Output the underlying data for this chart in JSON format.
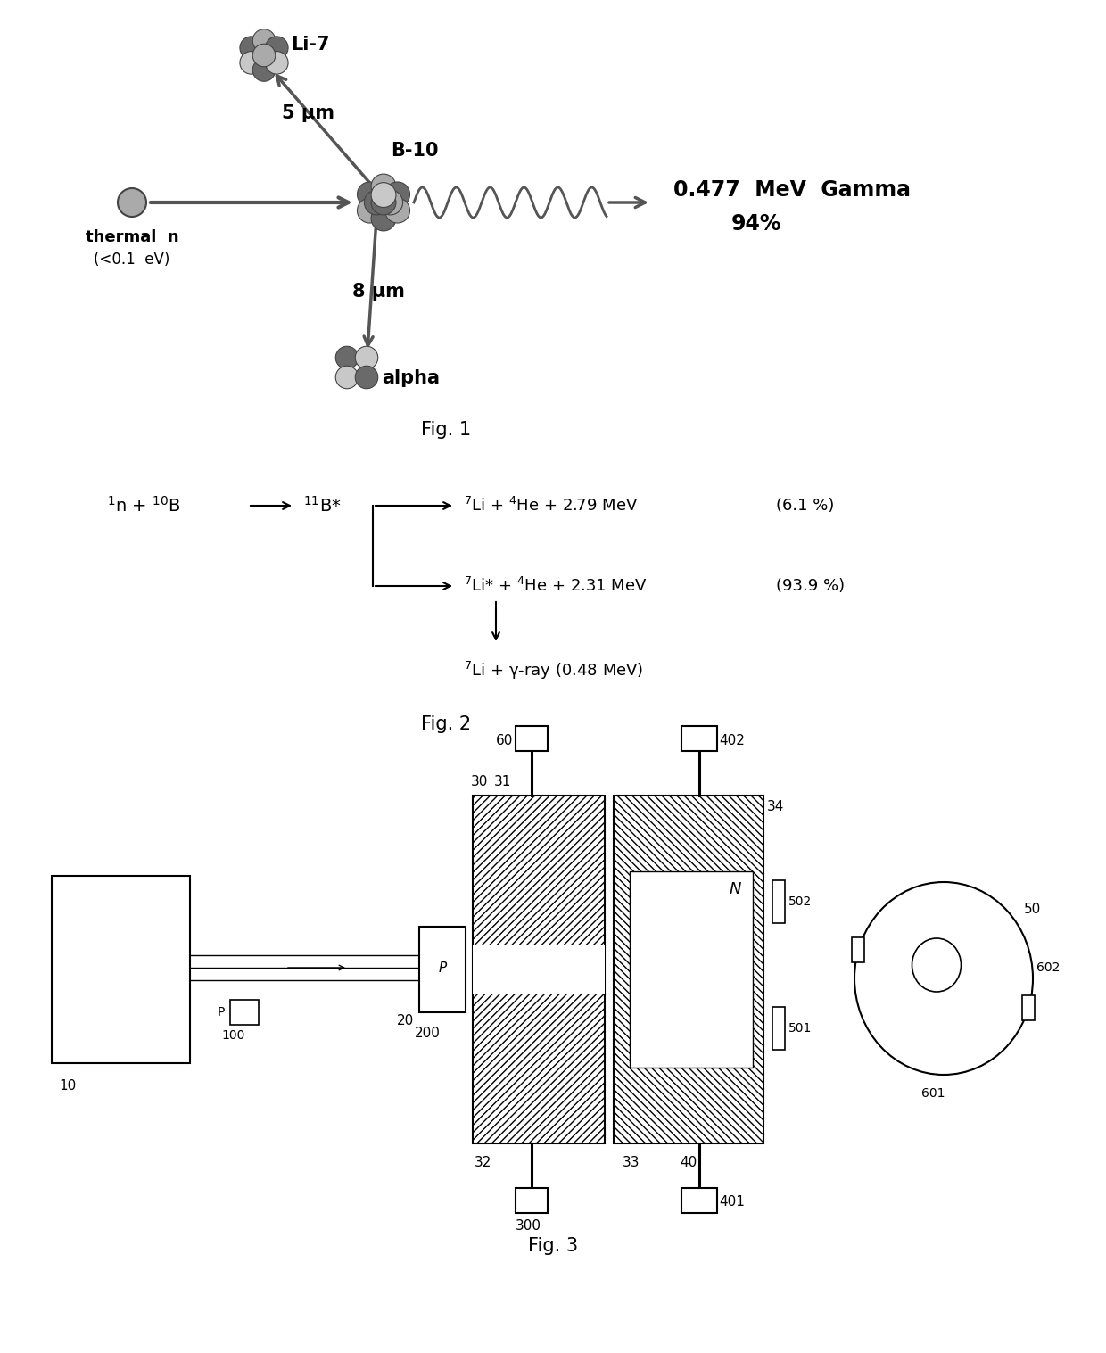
{
  "bg_color": "#ffffff",
  "dark_gray": "#6a6a6a",
  "medium_gray": "#888888",
  "light_gray": "#aaaaaa",
  "lighter_gray": "#c8c8c8",
  "fig1_caption": "Fig. 1",
  "fig2_caption": "Fig. 2",
  "fig3_caption": "Fig. 3"
}
